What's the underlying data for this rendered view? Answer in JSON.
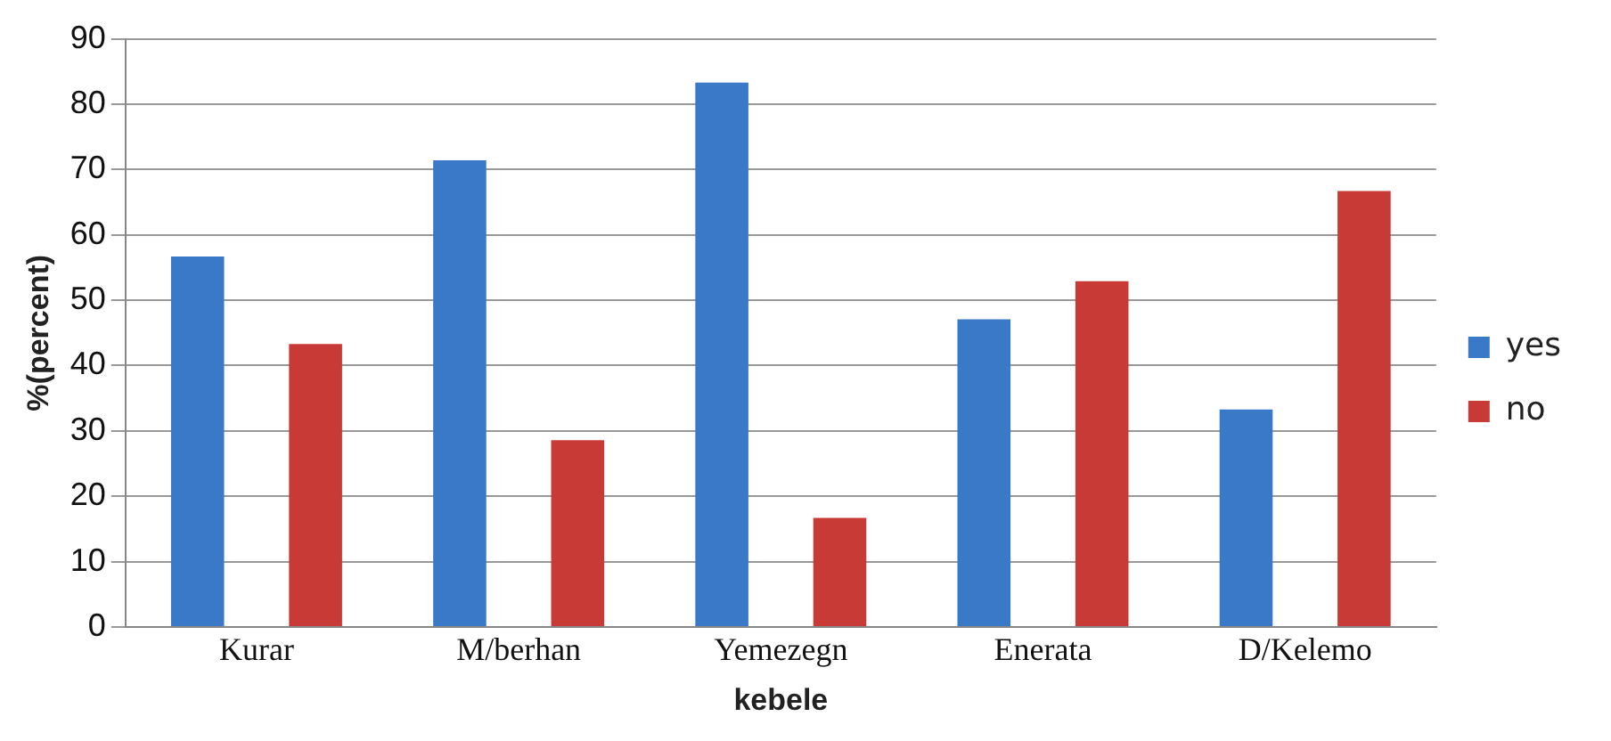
{
  "chart_data": {
    "type": "bar",
    "xlabel": "kebele",
    "ylabel": "%(percent)",
    "categories": [
      "Kurar",
      "M/berhan",
      "Yemezegn",
      "Enerata",
      "D/Kelemo"
    ],
    "series": [
      {
        "name": "yes",
        "color": "#3a78c8",
        "values": [
          56.7,
          71.4,
          83.3,
          47.1,
          33.3
        ]
      },
      {
        "name": "no",
        "color": "#c83a36",
        "values": [
          43.3,
          28.6,
          16.7,
          52.9,
          66.7
        ]
      }
    ],
    "ylim": [
      0,
      90
    ],
    "yticks": [
      0,
      10,
      20,
      30,
      40,
      50,
      60,
      70,
      80,
      90
    ],
    "grid": "y",
    "legend": "right"
  }
}
